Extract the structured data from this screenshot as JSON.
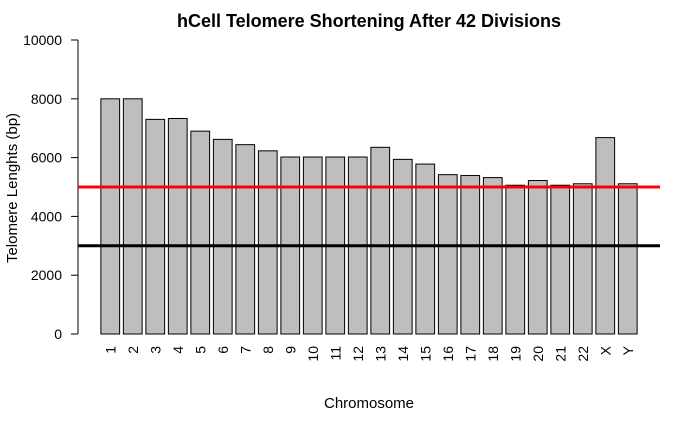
{
  "chart_data": {
    "type": "bar",
    "title": "hCell Telomere Shortening After  42  Divisions",
    "xlabel": "Chromosome",
    "ylabel": "Telomere Lenghts (bp)",
    "ylim": [
      0,
      10000
    ],
    "yticks": [
      0,
      2000,
      4000,
      6000,
      8000,
      10000
    ],
    "categories": [
      "1",
      "2",
      "3",
      "4",
      "5",
      "6",
      "7",
      "8",
      "9",
      "10",
      "11",
      "12",
      "13",
      "14",
      "15",
      "16",
      "17",
      "18",
      "19",
      "20",
      "21",
      "22",
      "X",
      "Y"
    ],
    "values": [
      8000,
      8000,
      7300,
      7330,
      6900,
      6620,
      6440,
      6230,
      6020,
      6020,
      6020,
      6020,
      6350,
      5940,
      5780,
      5420,
      5390,
      5320,
      5060,
      5220,
      5060,
      5110,
      6680,
      5110
    ],
    "bar_color": "#bebebe",
    "reference_lines": [
      {
        "y": 5000,
        "color": "#ff0000"
      },
      {
        "y": 3000,
        "color": "#000000"
      }
    ],
    "grid": false
  }
}
